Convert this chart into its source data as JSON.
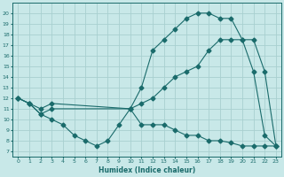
{
  "xlabel": "Humidex (Indice chaleur)",
  "bg_color": "#c8e8e8",
  "line_color": "#1a6b6b",
  "grid_color": "#a8d0d0",
  "xlim": [
    -0.5,
    23.5
  ],
  "ylim": [
    6.5,
    21
  ],
  "xticks": [
    0,
    1,
    2,
    3,
    4,
    5,
    6,
    7,
    8,
    9,
    10,
    11,
    12,
    13,
    14,
    15,
    16,
    17,
    18,
    19,
    20,
    21,
    22,
    23
  ],
  "yticks": [
    7,
    8,
    9,
    10,
    11,
    12,
    13,
    14,
    15,
    16,
    17,
    18,
    19,
    20
  ],
  "curve1_x": [
    0,
    1,
    2,
    3,
    10,
    11,
    12,
    13,
    14,
    15,
    16,
    17,
    18,
    19,
    20,
    21,
    22,
    23
  ],
  "curve1_y": [
    12,
    11.5,
    10.5,
    11,
    11,
    13,
    16.5,
    17.5,
    18.5,
    19.5,
    20,
    20,
    19.5,
    19.5,
    17.5,
    14.5,
    8.5,
    7.5
  ],
  "curve2_x": [
    0,
    1,
    2,
    3,
    10,
    11,
    12,
    13,
    14,
    15,
    16,
    17,
    18,
    19,
    20,
    21,
    22,
    23
  ],
  "curve2_y": [
    12,
    11.5,
    11,
    11.5,
    11,
    11.5,
    12,
    13,
    14,
    14.5,
    15,
    16.5,
    17.5,
    17.5,
    17.5,
    17.5,
    14.5,
    7.5
  ],
  "curve3_x": [
    0,
    1,
    2,
    3,
    4,
    5,
    6,
    7,
    8,
    9,
    10,
    11,
    12,
    13,
    14,
    15,
    16,
    17,
    18,
    19,
    20,
    21,
    22,
    23
  ],
  "curve3_y": [
    12,
    11.5,
    10.5,
    10,
    9.5,
    8.5,
    8.0,
    7.5,
    8.0,
    9.5,
    11,
    9.5,
    9.5,
    9.5,
    9.0,
    8.5,
    8.5,
    8.0,
    8.0,
    7.8,
    7.5,
    7.5,
    7.5,
    7.5
  ]
}
